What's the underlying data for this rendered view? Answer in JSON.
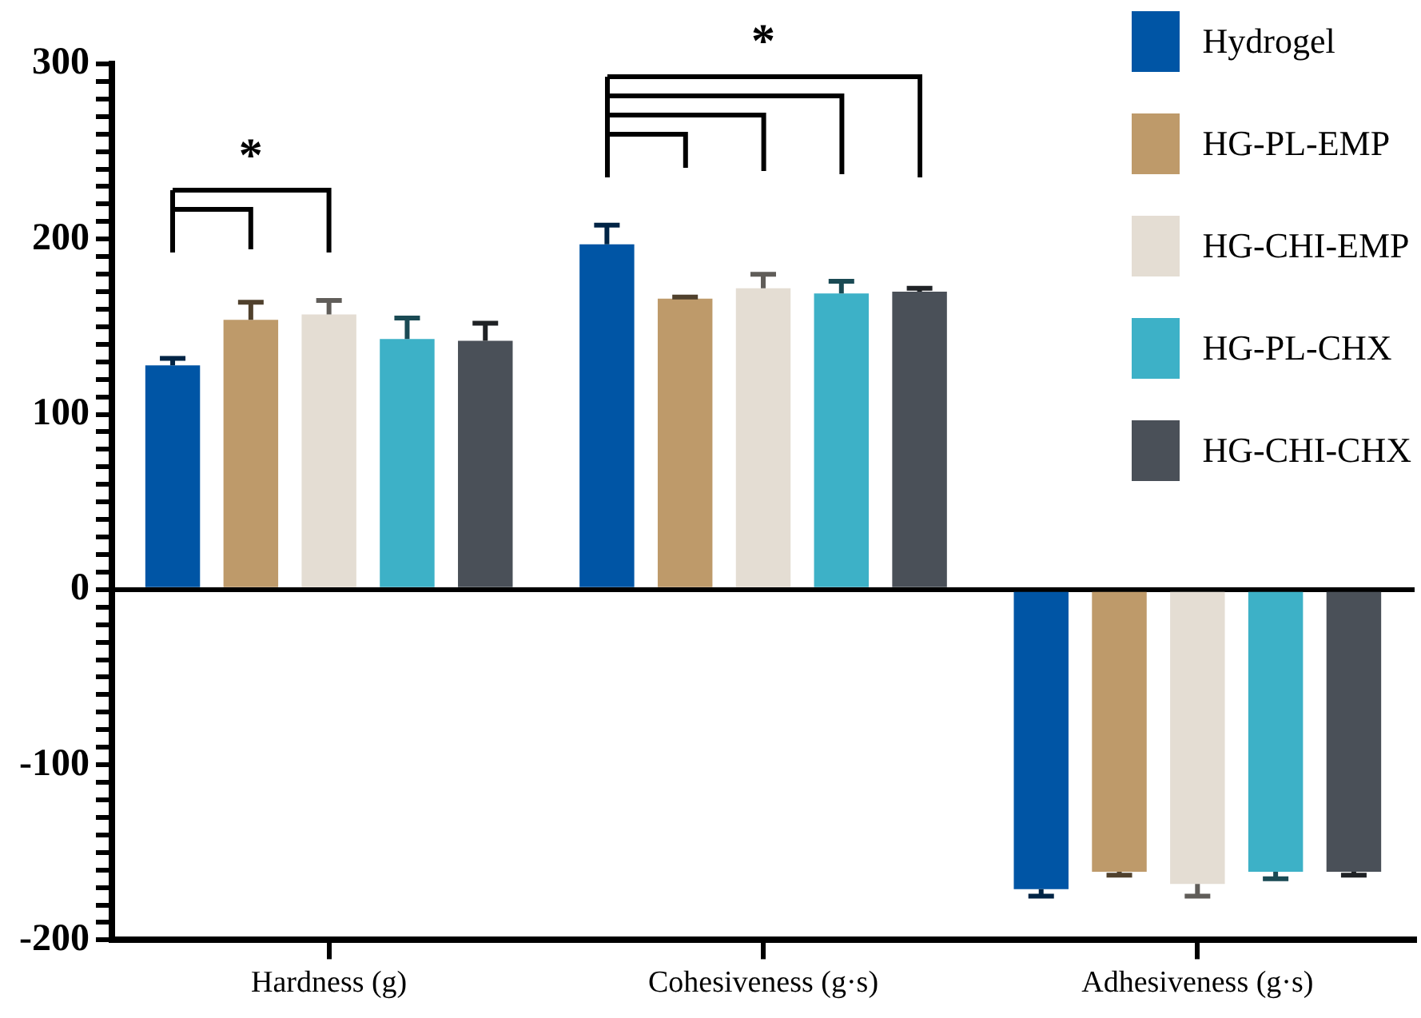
{
  "chart_data": {
    "type": "bar",
    "categories": [
      "Hardness (g)",
      "Cohesiveness (g·s)",
      "Adhesiveness (g·s)"
    ],
    "series": [
      {
        "name": "Hydrogel",
        "color": "#0055a5",
        "values": [
          128,
          197,
          -171
        ],
        "errors": [
          4,
          11,
          4
        ]
      },
      {
        "name": "HG-PL-EMP",
        "color": "#be9a6a",
        "values": [
          154,
          166,
          -161
        ],
        "errors": [
          10,
          1,
          2
        ]
      },
      {
        "name": "HG-CHI-EMP",
        "color": "#e4ddd3",
        "values": [
          157,
          172,
          -168
        ],
        "errors": [
          8,
          8,
          7
        ]
      },
      {
        "name": "HG-PL-CHX",
        "color": "#3db1c7",
        "values": [
          143,
          169,
          -161
        ],
        "errors": [
          12,
          7,
          4
        ]
      },
      {
        "name": "HG-CHI-CHX",
        "color": "#4a5058",
        "values": [
          142,
          170,
          -161
        ],
        "errors": [
          10,
          2,
          2
        ]
      }
    ],
    "ylim": [
      -200,
      300
    ],
    "yticks": [
      -200,
      {
        "value": -190,
        "label": null
      },
      {
        "value": -180,
        "label": null
      },
      {
        "value": -170,
        "label": null
      },
      {
        "value": -160,
        "label": null
      },
      {
        "value": -150,
        "label": null
      },
      {
        "value": -140,
        "label": null
      },
      {
        "value": -130,
        "label": null
      },
      {
        "value": -120,
        "label": null
      },
      {
        "value": -110,
        "label": null
      },
      -100,
      {
        "value": -90,
        "label": null
      },
      {
        "value": -80,
        "label": null
      },
      {
        "value": -70,
        "label": null
      },
      {
        "value": -60,
        "label": null
      },
      {
        "value": -50,
        "label": null
      },
      {
        "value": -40,
        "label": null
      },
      {
        "value": -30,
        "label": null
      },
      {
        "value": -20,
        "label": null
      },
      {
        "value": -10,
        "label": null
      },
      0,
      {
        "value": 10,
        "label": null
      },
      {
        "value": 20,
        "label": null
      },
      {
        "value": 30,
        "label": null
      },
      {
        "value": 40,
        "label": null
      },
      {
        "value": 50,
        "label": null
      },
      {
        "value": 60,
        "label": null
      },
      {
        "value": 70,
        "label": null
      },
      {
        "value": 80,
        "label": null
      },
      {
        "value": 90,
        "label": null
      },
      100,
      {
        "value": 110,
        "label": null
      },
      {
        "value": 120,
        "label": null
      },
      {
        "value": 130,
        "label": null
      },
      {
        "value": 140,
        "label": null
      },
      {
        "value": 150,
        "label": null
      },
      {
        "value": 160,
        "label": null
      },
      {
        "value": 170,
        "label": null
      },
      {
        "value": 180,
        "label": null
      },
      {
        "value": 190,
        "label": null
      },
      200,
      {
        "value": 210,
        "label": null
      },
      {
        "value": 220,
        "label": null
      },
      {
        "value": 230,
        "label": null
      },
      {
        "value": 240,
        "label": null
      },
      {
        "value": 250,
        "label": null
      },
      {
        "value": 260,
        "label": null
      },
      {
        "value": 270,
        "label": null
      },
      {
        "value": 280,
        "label": null
      },
      {
        "value": 290,
        "label": null
      },
      300
    ],
    "annotations": [
      "*",
      "*"
    ],
    "legend": "top right"
  }
}
